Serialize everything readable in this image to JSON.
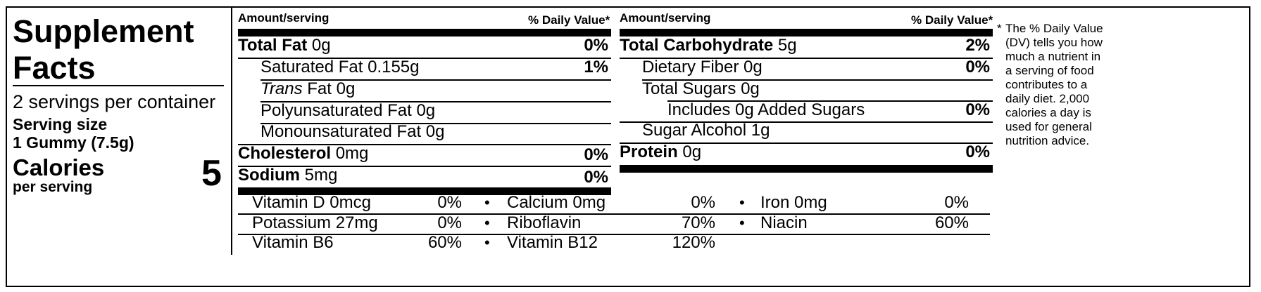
{
  "title": [
    "Supplement",
    "Facts"
  ],
  "servings_per_container": "2 servings per container",
  "serving_size_label": "Serving size",
  "serving_size_value": "1 Gummy (7.5g)",
  "calories_label": "Calories",
  "calories_sub": "per serving",
  "calories_value": "5",
  "header": {
    "amount": "Amount/serving",
    "dv": "% Daily Value*"
  },
  "left_rows": [
    {
      "name": "Total Fat",
      "amount": "0g",
      "dv": "0%"
    },
    {
      "name": "Saturated Fat",
      "amount": "0.155g",
      "dv": "1%"
    },
    {
      "name": "Trans",
      "amount": "Fat 0g",
      "dv": ""
    },
    {
      "name": "Polyunsaturated Fat 0g",
      "amount": "",
      "dv": ""
    },
    {
      "name": "Monounsaturated Fat 0g",
      "amount": "",
      "dv": ""
    },
    {
      "name": "Cholesterol",
      "amount": "0mg",
      "dv": "0%"
    },
    {
      "name": "Sodium",
      "amount": "5mg",
      "dv": "0%"
    }
  ],
  "right_rows": [
    {
      "name": "Total Carbohydrate",
      "amount": "5g",
      "dv": "2%"
    },
    {
      "name": "Dietary Fiber 0g",
      "amount": "",
      "dv": "0%"
    },
    {
      "name": "Total Sugars 0g",
      "amount": "",
      "dv": ""
    },
    {
      "name": "Includes 0g Added Sugars",
      "amount": "",
      "dv": "0%"
    },
    {
      "name": "Sugar Alcohol 1g",
      "amount": "",
      "dv": ""
    },
    {
      "name": "Protein",
      "amount": "0g",
      "dv": "0%"
    }
  ],
  "vitamins": [
    [
      {
        "name": "Vitamin D 0mcg",
        "dv": "0%"
      },
      {
        "name": "Calcium 0mg",
        "dv": "0%"
      },
      {
        "name": "Iron 0mg",
        "dv": "0%"
      }
    ],
    [
      {
        "name": "Potassium 27mg",
        "dv": "0%"
      },
      {
        "name": "Riboflavin",
        "dv": "70%"
      },
      {
        "name": "Niacin",
        "dv": "60%"
      }
    ],
    [
      {
        "name": "Vitamin B6",
        "dv": "60%"
      },
      {
        "name": "Vitamin B12",
        "dv": "120%"
      }
    ]
  ],
  "bullet": "•",
  "footnote": {
    "star": "*",
    "lines": [
      "The % Daily Value",
      "(DV) tells you how",
      "much a nutrient in",
      "a serving of food",
      "contributes to a",
      "daily diet. 2,000",
      "calories a day is",
      "used for general",
      "nutrition advice."
    ]
  }
}
